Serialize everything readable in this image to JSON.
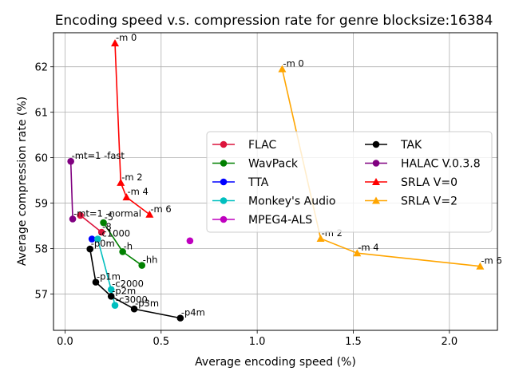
{
  "chart_data": {
    "type": "line",
    "title": "Encoding speed v.s. compression rate for genre blocksize:16384",
    "xlabel": "Average encoding speed (%)",
    "ylabel": "Average compression rate (%)",
    "xlim": [
      -0.06,
      2.25
    ],
    "ylim": [
      56.2,
      62.75
    ],
    "xticks": [
      "0.0",
      "0.5",
      "1.0",
      "1.5",
      "2.0"
    ],
    "xtick_values": [
      0.0,
      0.5,
      1.0,
      1.5,
      2.0
    ],
    "yticks": [
      "57",
      "58",
      "59",
      "60",
      "61",
      "62"
    ],
    "ytick_values": [
      57,
      58,
      59,
      60,
      61,
      62
    ],
    "grid": true,
    "legend_placement": "center-right",
    "series": [
      {
        "name": "FLAC",
        "color": "#dc143c",
        "marker": "circle",
        "points": [
          [
            0.08,
            58.73,
            ""
          ],
          [
            0.19,
            58.36,
            "-8"
          ]
        ]
      },
      {
        "name": "WavPack",
        "color": "#008000",
        "marker": "circle",
        "points": [
          [
            0.2,
            58.57,
            "-5"
          ],
          [
            0.3,
            57.93,
            "-h"
          ],
          [
            0.4,
            57.63,
            "-hh"
          ]
        ]
      },
      {
        "name": "TTA",
        "color": "#0000ff",
        "marker": "circle",
        "points": [
          [
            0.14,
            58.21,
            ""
          ]
        ]
      },
      {
        "name": "Monkey's Audio",
        "color": "#00bfbf",
        "marker": "circle",
        "points": [
          [
            0.17,
            58.21,
            "-c1000"
          ],
          [
            0.24,
            57.1,
            "-c2000"
          ],
          [
            0.26,
            56.75,
            "-c3000"
          ]
        ]
      },
      {
        "name": "MPEG4-ALS",
        "color": "#bf00bf",
        "marker": "circle",
        "points": [
          [
            0.65,
            58.17,
            ""
          ]
        ]
      },
      {
        "name": "TAK",
        "color": "#000000",
        "marker": "circle",
        "points": [
          [
            0.13,
            57.99,
            "-p0m"
          ],
          [
            0.16,
            57.26,
            "-p1m"
          ],
          [
            0.24,
            56.95,
            "-p2m"
          ],
          [
            0.36,
            56.67,
            "-p3m"
          ],
          [
            0.6,
            56.47,
            "-p4m"
          ]
        ]
      },
      {
        "name": "HALAC V.0.3.8",
        "color": "#800080",
        "marker": "circle",
        "points": [
          [
            0.03,
            59.92,
            "-mt=1 -fast"
          ],
          [
            0.04,
            58.65,
            "-mt=1 -normal"
          ]
        ]
      },
      {
        "name": "SRLA V=0",
        "color": "#ff0000",
        "marker": "triangle",
        "points": [
          [
            0.26,
            62.52,
            "-m 0"
          ],
          [
            0.29,
            59.45,
            "-m 2"
          ],
          [
            0.32,
            59.13,
            "-m 4"
          ],
          [
            0.44,
            58.75,
            "-m 6"
          ]
        ]
      },
      {
        "name": "SRLA V=2",
        "color": "#ffa500",
        "marker": "triangle",
        "points": [
          [
            1.13,
            61.95,
            "-m 0"
          ],
          [
            1.33,
            58.22,
            "-m 2"
          ],
          [
            1.52,
            57.9,
            "-m 4"
          ],
          [
            2.16,
            57.61,
            "-m 6"
          ]
        ]
      }
    ]
  }
}
